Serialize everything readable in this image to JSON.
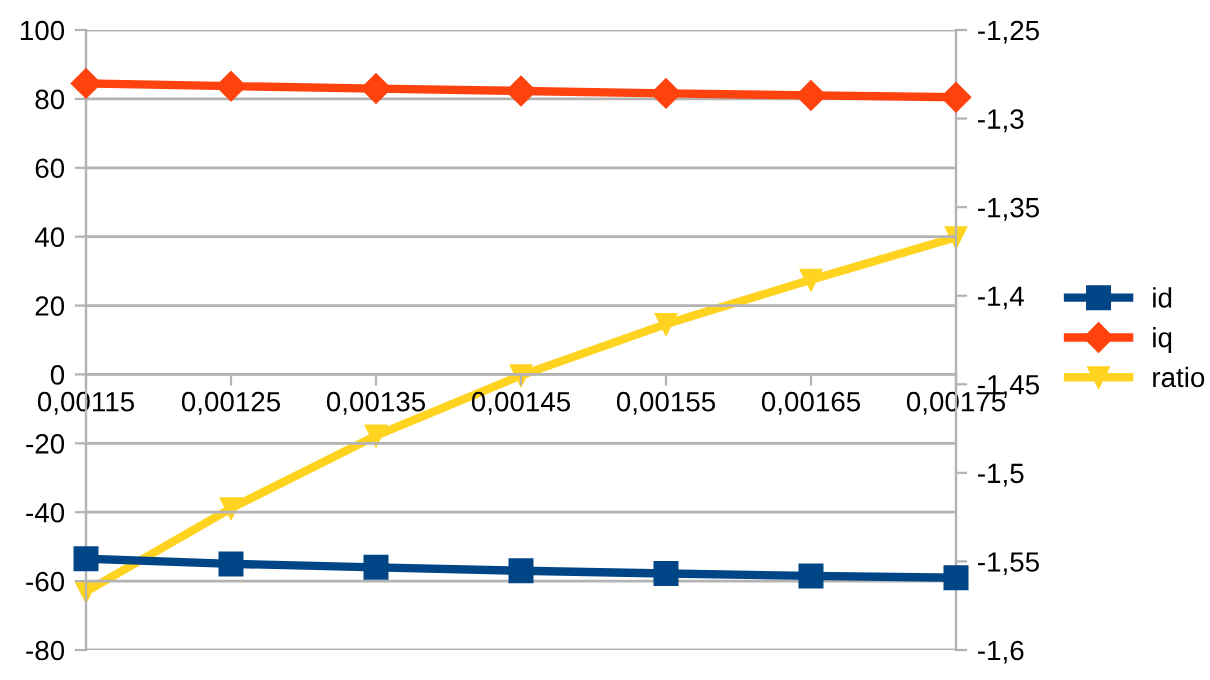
{
  "chart_data": {
    "type": "line",
    "x": [
      0.00115,
      0.00125,
      0.00135,
      0.00145,
      0.00155,
      0.00165,
      0.00175
    ],
    "series": [
      {
        "name": "id",
        "color": "#004586",
        "marker": "square",
        "values": [
          -53.5,
          -55,
          -56,
          -57,
          -57.8,
          -58.5,
          -59
        ]
      },
      {
        "name": "iq",
        "color": "#ff420e",
        "marker": "diamond",
        "values": [
          84.5,
          83.7,
          83,
          82.3,
          81.6,
          81,
          80.5
        ]
      },
      {
        "name": "ratio",
        "color": "#ffd320",
        "marker": "triangle",
        "axis": "y2",
        "values": [
          -1.567,
          -1.52,
          -1.479,
          -1.445,
          -1.416,
          -1.391,
          -1.367
        ]
      }
    ],
    "xlim": [
      0.00115,
      0.00175
    ],
    "xticks": [
      {
        "value": 0.00115,
        "label": "0,00115"
      },
      {
        "value": 0.00125,
        "label": "0,00125"
      },
      {
        "value": 0.00135,
        "label": "0,00135"
      },
      {
        "value": 0.00145,
        "label": "0,00145"
      },
      {
        "value": 0.00155,
        "label": "0,00155"
      },
      {
        "value": 0.00165,
        "label": "0,00165"
      },
      {
        "value": 0.00175,
        "label": "0,00175"
      }
    ],
    "ylim": [
      -80,
      100
    ],
    "yticks": [
      -80,
      -60,
      -40,
      -20,
      0,
      20,
      40,
      60,
      80,
      100
    ],
    "y2lim": [
      -1.6,
      -1.25
    ],
    "y2ticks": [
      {
        "value": -1.6,
        "label": "-1,6"
      },
      {
        "value": -1.55,
        "label": "-1,55"
      },
      {
        "value": -1.5,
        "label": "-1,5"
      },
      {
        "value": -1.45,
        "label": "-1,45"
      },
      {
        "value": -1.4,
        "label": "-1,4"
      },
      {
        "value": -1.35,
        "label": "-1,35"
      },
      {
        "value": -1.3,
        "label": "-1,3"
      },
      {
        "value": -1.25,
        "label": "-1,25"
      }
    ],
    "grid": "y",
    "legend": "right",
    "line_style": "solid"
  }
}
